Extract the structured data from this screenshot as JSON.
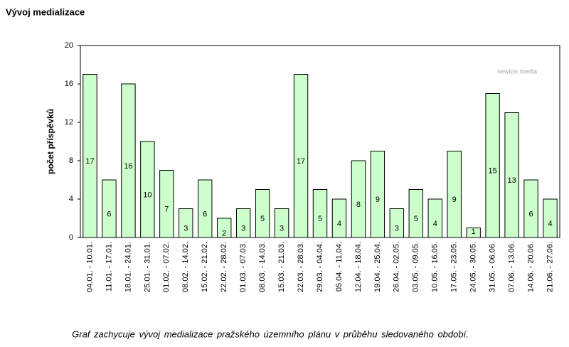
{
  "chart_data": {
    "type": "bar",
    "title": "Vývoj medializace",
    "y_label": "počet příspěvků",
    "categories": [
      "04.01. - 10.01.",
      "11.01. - 17.01.",
      "18.01. - 24.01.",
      "25.01. - 31.01.",
      "01.02. - 07.02.",
      "08.02. - 14.02.",
      "15.02. - 21.02.",
      "22.02. - 28.02.",
      "01.03. - 07.03.",
      "08.03. - 14.03.",
      "15.03. - 21.03.",
      "22.03. - 28.03.",
      "29.03. - 04.04.",
      "05.04. - 11.04.",
      "12.04. - 18.04.",
      "19.04. - 25.04.",
      "26.04. - 02.05.",
      "03.05. - 09.05.",
      "10.05. - 16.05.",
      "17.05. - 23.05.",
      "24.05. - 30.05.",
      "31.05. - 06.06.",
      "07.06. - 13.06.",
      "14.06. - 20.06.",
      "21.06. - 27.06."
    ],
    "values": [
      17,
      6,
      16,
      10,
      7,
      3,
      6,
      2,
      3,
      5,
      3,
      17,
      5,
      4,
      8,
      9,
      3,
      5,
      4,
      9,
      1,
      15,
      13,
      6,
      4
    ],
    "color": "#ccffcc",
    "ylim": [
      0,
      20
    ],
    "yticks": [
      0,
      4,
      8,
      12,
      16,
      20
    ],
    "logo": "newton media",
    "caption": "Graf zachycuje vývoj medializace pražského územního plánu v průběhu sledovaného období."
  }
}
